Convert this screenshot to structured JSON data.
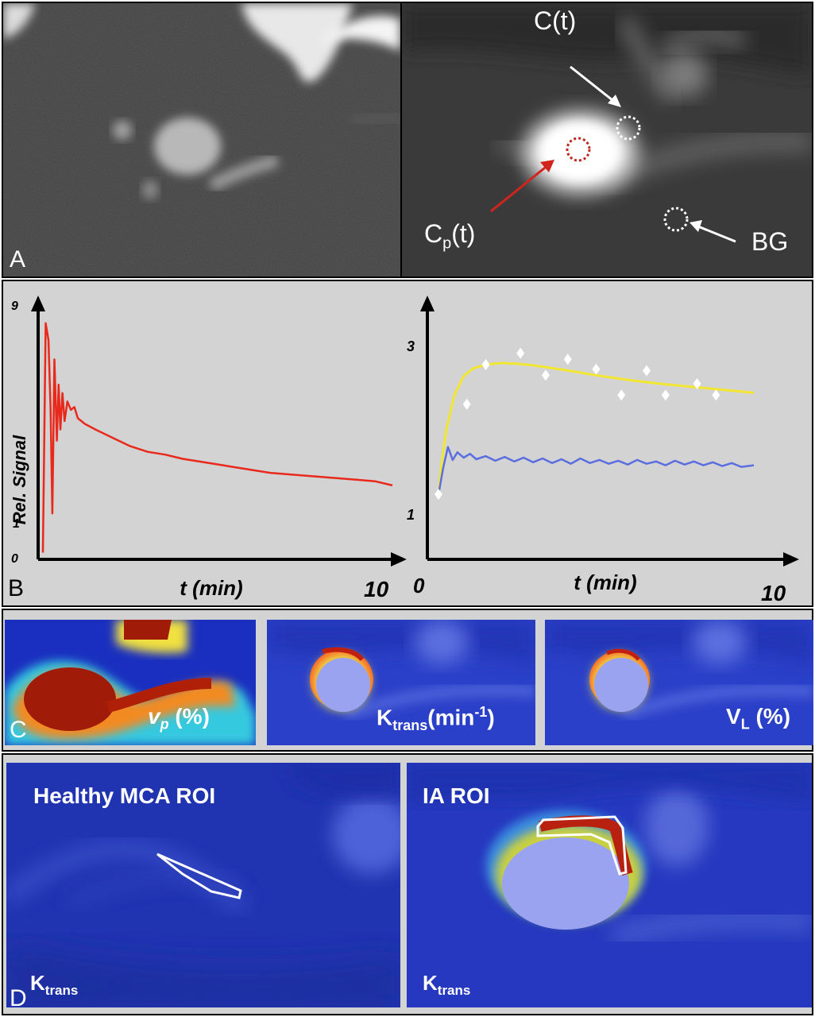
{
  "panel_a": {
    "letter": "A",
    "labels": {
      "ct": "C(t)",
      "cp_main": "C",
      "cp_sub": "p",
      "cp_tail": "(t)",
      "bg": "BG"
    }
  },
  "panel_b": {
    "letter": "B",
    "chart_data": [
      {
        "type": "line",
        "ylabel": "Rel. Signal",
        "xlabel": "t (min)",
        "x_tick_labels": [
          "10"
        ],
        "y_tick_labels": [
          "0",
          "1",
          "9"
        ],
        "xlim": [
          0,
          10
        ],
        "ylim": [
          0,
          9
        ],
        "series": [
          {
            "color": "#e8291c",
            "x": [
              0.0,
              0.08,
              0.16,
              0.22,
              0.27,
              0.33,
              0.4,
              0.45,
              0.5,
              0.56,
              0.62,
              0.7,
              0.8,
              0.9,
              1.0,
              1.2,
              1.5,
              2.0,
              2.5,
              3.0,
              3.5,
              4.0,
              4.5,
              5.0,
              5.5,
              6.0,
              6.5,
              7.0,
              7.5,
              8.0,
              8.5,
              9.0,
              9.5,
              10.0
            ],
            "y": [
              0.1,
              8.3,
              7.7,
              5.2,
              1.5,
              7.0,
              4.1,
              6.1,
              4.5,
              5.8,
              4.8,
              5.5,
              5.2,
              5.3,
              4.9,
              4.7,
              4.5,
              4.2,
              3.9,
              3.7,
              3.6,
              3.45,
              3.35,
              3.25,
              3.15,
              3.05,
              2.95,
              2.9,
              2.85,
              2.8,
              2.75,
              2.7,
              2.65,
              2.5
            ]
          }
        ]
      },
      {
        "type": "line",
        "xlabel": "t (min)",
        "x_tick_labels": [
          "0",
          "10"
        ],
        "y_tick_labels": [
          "1",
          "3"
        ],
        "xlim": [
          0,
          10
        ],
        "ylim": [
          0.2,
          3.5
        ],
        "series": [
          {
            "color": "#f3e631",
            "x": [
              0.0,
              0.1,
              0.25,
              0.5,
              0.8,
              1.1,
              1.5,
              2.0,
              2.5,
              3.0,
              4.0,
              5.0,
              6.0,
              7.0,
              8.0,
              9.0,
              10.0
            ],
            "y": [
              1.0,
              1.4,
              1.85,
              2.3,
              2.55,
              2.65,
              2.7,
              2.72,
              2.71,
              2.69,
              2.63,
              2.56,
              2.5,
              2.45,
              2.41,
              2.37,
              2.33
            ]
          },
          {
            "color": "#5a6ee0",
            "x": [
              0.0,
              0.15,
              0.3,
              0.45,
              0.6,
              0.8,
              1.0,
              1.2,
              1.5,
              1.8,
              2.1,
              2.4,
              2.7,
              3.0,
              3.3,
              3.6,
              3.9,
              4.2,
              4.5,
              4.8,
              5.1,
              5.4,
              5.7,
              6.0,
              6.3,
              6.6,
              6.9,
              7.2,
              7.5,
              7.8,
              8.1,
              8.4,
              8.7,
              9.0,
              9.3,
              9.6,
              10.0
            ],
            "y": [
              1.0,
              1.35,
              1.62,
              1.45,
              1.55,
              1.48,
              1.53,
              1.46,
              1.5,
              1.44,
              1.49,
              1.43,
              1.48,
              1.42,
              1.47,
              1.41,
              1.46,
              1.4,
              1.47,
              1.41,
              1.45,
              1.4,
              1.44,
              1.39,
              1.45,
              1.4,
              1.43,
              1.38,
              1.44,
              1.39,
              1.43,
              1.38,
              1.42,
              1.37,
              1.41,
              1.36,
              1.38
            ]
          },
          {
            "color": "#ffffff",
            "marker": "diamond",
            "x": [
              0.0,
              0.9,
              1.5,
              2.6,
              3.4,
              4.1,
              5.0,
              5.8,
              6.6,
              7.2,
              8.2,
              8.8
            ],
            "y": [
              1.0,
              2.18,
              2.7,
              2.85,
              2.56,
              2.77,
              2.64,
              2.3,
              2.62,
              2.3,
              2.45,
              2.3
            ]
          }
        ]
      }
    ]
  },
  "panel_c": {
    "letter": "C",
    "labels": {
      "vp_main": "v",
      "vp_sub": "p",
      "vp_tail": " (%)",
      "kt_main": "K",
      "kt_sub": "trans",
      "kt_tail": "(min",
      "kt_sup": "-1",
      "kt_close": ")",
      "vl_main": "V",
      "vl_sub": "L",
      "vl_tail": " (%)"
    }
  },
  "panel_d": {
    "letter": "D",
    "left_title": "Healthy MCA ROI",
    "right_title": "IA ROI",
    "k_main": "K",
    "k_sub": "trans"
  }
}
